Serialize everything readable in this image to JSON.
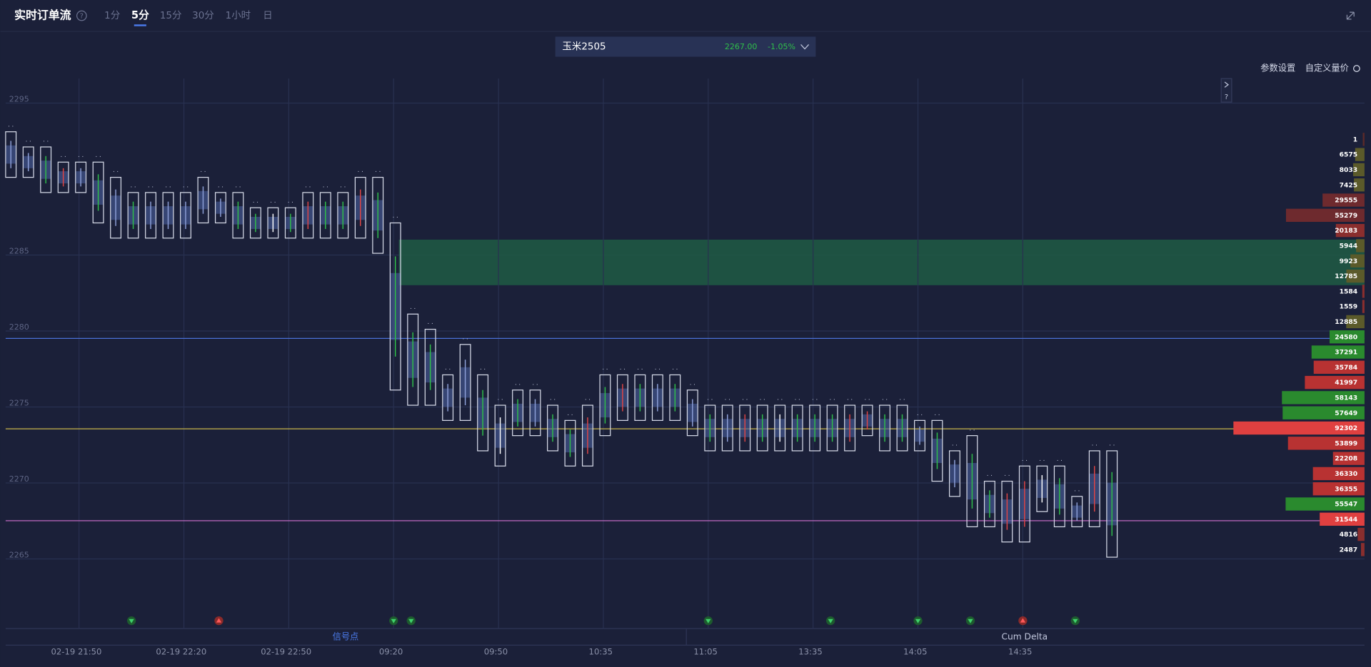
{
  "header": {
    "title": "实时订单流",
    "tabs": [
      "1分",
      "5分",
      "15分",
      "30分",
      "1小时",
      "日"
    ],
    "active_tab": 1
  },
  "symbol": {
    "name": "玉米2505",
    "price": "2267.00",
    "change": "-1.05%"
  },
  "toolbar": [
    "参数设置",
    "自定义量价"
  ],
  "panels": [
    "信号点",
    "Cum Delta"
  ],
  "chart_data": {
    "type": "footprint",
    "ylim": [
      2260.3,
      2296.5
    ],
    "yticks": [
      2295,
      2285,
      2280,
      2275,
      2270,
      2265
    ],
    "grid": true,
    "categories": [
      null,
      null,
      null,
      null,
      "02-19 21:50",
      null,
      null,
      null,
      null,
      null,
      "02-19 22:20",
      null,
      null,
      null,
      null,
      null,
      "02-19 22:50",
      null,
      null,
      null,
      null,
      null,
      "09:20",
      null,
      null,
      null,
      null,
      null,
      "09:50",
      null,
      null,
      null,
      null,
      null,
      "10:35",
      null,
      null,
      null,
      null,
      null,
      "11:05",
      null,
      null,
      null,
      null,
      null,
      "13:35",
      null,
      null,
      null,
      null,
      null,
      "14:05",
      null,
      null,
      null,
      null,
      null,
      "14:35",
      null,
      null,
      null,
      null,
      null
    ],
    "high": [
      2293,
      2292,
      2292,
      2291,
      2291,
      2291,
      2290,
      2289,
      2289,
      2289,
      2289,
      2290,
      2289,
      2289,
      2288,
      2288,
      2288,
      2289,
      2289,
      2289,
      2290,
      2290,
      2287,
      2281,
      2280,
      2277,
      2279,
      2277,
      2275,
      2276,
      2276,
      2275,
      2274,
      2275,
      2277,
      2277,
      2277,
      2277,
      2277,
      2276,
      2275,
      2275,
      2275,
      2275,
      2275,
      2275,
      2275,
      2275,
      2275,
      2275,
      2275,
      2275,
      2274,
      2274,
      2272,
      2273,
      2270,
      2270,
      2271,
      2271,
      2271,
      2269,
      2272,
      2272
    ],
    "low": [
      2290,
      2290,
      2289,
      2289,
      2289,
      2287,
      2286,
      2286,
      2286,
      2286,
      2286,
      2287,
      2287,
      2286,
      2286,
      2286,
      2286,
      2286,
      2286,
      2286,
      2286,
      2285,
      2276,
      2275,
      2275,
      2274,
      2274,
      2272,
      2271,
      2273,
      2273,
      2272,
      2271,
      2271,
      2273,
      2274,
      2274,
      2274,
      2274,
      2273,
      2272,
      2272,
      2272,
      2272,
      2272,
      2272,
      2272,
      2272,
      2272,
      2273,
      2272,
      2272,
      2272,
      2270,
      2269,
      2267,
      2267,
      2266,
      2266,
      2268,
      2267,
      2267,
      2267,
      2265
    ],
    "body_colors": [
      "#8ea0d8",
      "#8ea0d8",
      "#2fbf4a",
      "#e04545",
      "#8ea0d8",
      "#2fbf4a",
      "#8ea0d8",
      "#2fbf4a",
      "#8ea0d8",
      "#8ea0d8",
      "#8ea0d8",
      "#8ea0d8",
      "#8ea0d8",
      "#2fbf4a",
      "#2fbf4a",
      "#ffffff",
      "#2fbf4a",
      "#e04545",
      "#2fbf4a",
      "#2fbf4a",
      "#e04545",
      "#2fbf4a",
      "#2fbf4a",
      "#2fbf4a",
      "#2fbf4a",
      "#8ea0d8",
      "#8ea0d8",
      "#2fbf4a",
      "#ffffff",
      "#2fbf4a",
      "#8ea0d8",
      "#2fbf4a",
      "#2fbf4a",
      "#e04545",
      "#2fbf4a",
      "#e04545",
      "#2fbf4a",
      "#8ea0d8",
      "#2fbf4a",
      "#8ea0d8",
      "#2fbf4a",
      "#8ea0d8",
      "#e04545",
      "#2fbf4a",
      "#ffffff",
      "#2fbf4a",
      "#2fbf4a",
      "#2fbf4a",
      "#e04545",
      "#e04545",
      "#2fbf4a",
      "#2fbf4a",
      "#8ea0d8",
      "#2fbf4a",
      "#8ea0d8",
      "#2fbf4a",
      "#2fbf4a",
      "#e04545",
      "#e04545",
      "#ffffff",
      "#2fbf4a",
      "#8ea0d8",
      "#e04545",
      "#2fbf4a"
    ],
    "zone": {
      "range": [
        2282.9,
        2285.9
      ],
      "color": "#1e5c44"
    },
    "lines": [
      {
        "value": 2279.4,
        "color": "#4a6fd6"
      },
      {
        "value": 2273.45,
        "color": "#c8b44a"
      },
      {
        "value": 2267.4,
        "color": "#d070d0"
      }
    ],
    "signals": [
      {
        "index": 7,
        "direction": "down"
      },
      {
        "index": 12,
        "direction": "up"
      },
      {
        "index": 22,
        "direction": "down"
      },
      {
        "index": 23,
        "direction": "down"
      },
      {
        "index": 40,
        "direction": "down"
      },
      {
        "index": 47,
        "direction": "down"
      },
      {
        "index": 52,
        "direction": "down"
      },
      {
        "index": 55,
        "direction": "down"
      },
      {
        "index": 58,
        "direction": "up"
      },
      {
        "index": 61,
        "direction": "down"
      }
    ],
    "profile": [
      {
        "price": 2292.5,
        "volume": 1,
        "color": "#5a2a2a"
      },
      {
        "price": 2291.5,
        "volume": 6575,
        "color": "#5b5a2a"
      },
      {
        "price": 2290.5,
        "volume": 8033,
        "color": "#5b5a2a"
      },
      {
        "price": 2289.5,
        "volume": 7425,
        "color": "#5b5a2a"
      },
      {
        "price": 2288.5,
        "volume": 29555,
        "color": "#6e2a2e"
      },
      {
        "price": 2287.5,
        "volume": 55279,
        "color": "#6e2a2e"
      },
      {
        "price": 2286.5,
        "volume": 20183,
        "color": "#8a2e2e"
      },
      {
        "price": 2285.5,
        "volume": 5944,
        "color": "#5b5a2a"
      },
      {
        "price": 2284.5,
        "volume": 9923,
        "color": "#5b5a2a"
      },
      {
        "price": 2283.5,
        "volume": 12785,
        "color": "#5b5a2a"
      },
      {
        "price": 2282.5,
        "volume": 1584,
        "color": "#8a2e2e"
      },
      {
        "price": 2281.5,
        "volume": 1559,
        "color": "#8a2e2e"
      },
      {
        "price": 2280.5,
        "volume": 12885,
        "color": "#5b5a2a"
      },
      {
        "price": 2279.5,
        "volume": 24580,
        "color": "#2a8a2e"
      },
      {
        "price": 2278.5,
        "volume": 37291,
        "color": "#2a8a2e"
      },
      {
        "price": 2277.5,
        "volume": 35784,
        "color": "#b83232"
      },
      {
        "price": 2276.5,
        "volume": 41997,
        "color": "#b83232"
      },
      {
        "price": 2275.5,
        "volume": 58143,
        "color": "#2a8a2e"
      },
      {
        "price": 2274.5,
        "volume": 57649,
        "color": "#2a8a2e"
      },
      {
        "price": 2273.5,
        "volume": 92302,
        "color": "#e04040"
      },
      {
        "price": 2272.5,
        "volume": 53899,
        "color": "#b83232"
      },
      {
        "price": 2271.5,
        "volume": 22208,
        "color": "#b83232"
      },
      {
        "price": 2270.5,
        "volume": 36330,
        "color": "#b83232"
      },
      {
        "price": 2269.5,
        "volume": 36355,
        "color": "#b83232"
      },
      {
        "price": 2268.5,
        "volume": 55547,
        "color": "#2a8a2e"
      },
      {
        "price": 2267.5,
        "volume": 31544,
        "color": "#e04040"
      },
      {
        "price": 2266.5,
        "volume": 4816,
        "color": "#8a2e2e"
      },
      {
        "price": 2265.5,
        "volume": 2487,
        "color": "#8a2e2e"
      }
    ]
  }
}
